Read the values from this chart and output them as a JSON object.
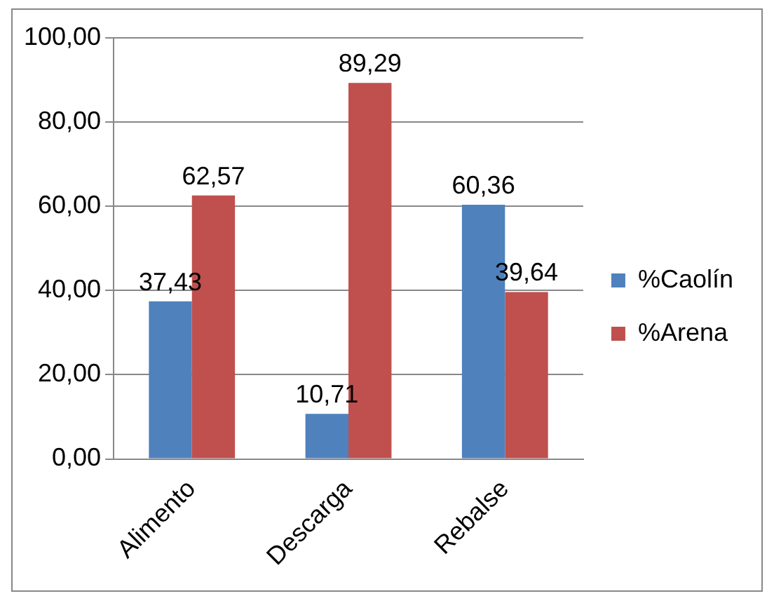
{
  "chart_data": {
    "type": "bar",
    "categories": [
      "Alimento",
      "Descarga",
      "Rebalse"
    ],
    "series": [
      {
        "name": "%Caolín",
        "color": "#4f81bd",
        "values": [
          37.43,
          10.71,
          60.36
        ],
        "value_labels": [
          "37,43",
          "10,71",
          "60,36"
        ]
      },
      {
        "name": "%Arena",
        "color": "#c0504d",
        "values": [
          62.57,
          89.29,
          39.64
        ],
        "value_labels": [
          "62,57",
          "89,29",
          "39,64"
        ]
      }
    ],
    "ylim": [
      0,
      100
    ],
    "yticks": [
      {
        "value": 0,
        "label": "0,00"
      },
      {
        "value": 20,
        "label": "20,00"
      },
      {
        "value": 40,
        "label": "40,00"
      },
      {
        "value": 60,
        "label": "60,00"
      },
      {
        "value": 80,
        "label": "80,00"
      },
      {
        "value": 100,
        "label": "100,00"
      }
    ],
    "grid": "y",
    "legend": "right"
  }
}
